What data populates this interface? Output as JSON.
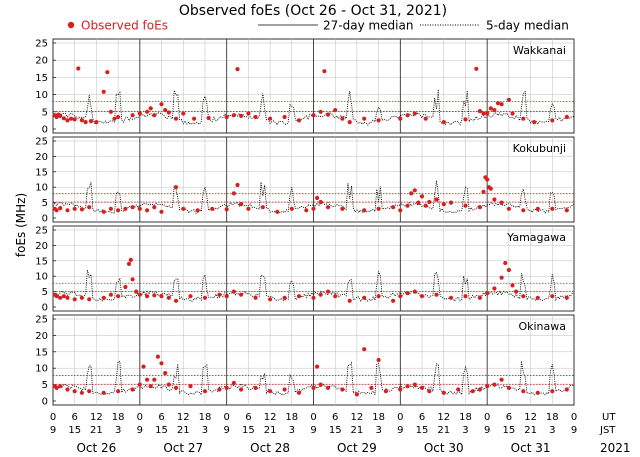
{
  "chart_data": {
    "type": "scatter",
    "title": "Observed foEs (Oct 26 - Oct 31, 2021)",
    "ylabel": "foEs (MHz)",
    "legend": {
      "observed": "Observed foEs",
      "median27": "27-day median",
      "median5": "5-day median"
    },
    "colors": {
      "observed": "#d62020",
      "median27": "#d62020",
      "median5": "#000000",
      "grid": "#bdbdbd"
    },
    "x_range_hours": [
      0,
      144
    ],
    "ylim": [
      0,
      25
    ],
    "yticks": [
      0,
      5,
      10,
      15,
      20,
      25
    ],
    "ut_tick_labels": [
      "0",
      "6",
      "12",
      "18",
      "0",
      "6",
      "12",
      "18",
      "0",
      "6",
      "12",
      "18",
      "0",
      "6",
      "12",
      "18",
      "0",
      "6",
      "12",
      "18",
      "0",
      "6",
      "12",
      "18",
      "0"
    ],
    "jst_tick_labels": [
      "9",
      "15",
      "21",
      "3",
      "9",
      "15",
      "21",
      "3",
      "9",
      "15",
      "21",
      "3",
      "9",
      "15",
      "21",
      "3",
      "9",
      "15",
      "21",
      "3",
      "9",
      "15",
      "21",
      "3",
      "9"
    ],
    "ut_label": "UT",
    "jst_label": "JST",
    "year": "2021",
    "days": [
      "Oct 26",
      "Oct 27",
      "Oct 28",
      "Oct 29",
      "Oct 30",
      "Oct 31"
    ],
    "panels": [
      {
        "station": "Wakkanai",
        "median27_upper": 8.0,
        "median27_lower": 5.1,
        "base": 3.0,
        "amp": 1.2,
        "noise": 0.7,
        "observed": [
          [
            0.5,
            4.0
          ],
          [
            1.0,
            3.5
          ],
          [
            1.5,
            4.2
          ],
          [
            2.0,
            3.8
          ],
          [
            3.0,
            3.1
          ],
          [
            4.0,
            2.5
          ],
          [
            5.0,
            3.0
          ],
          [
            6.0,
            2.8
          ],
          [
            7.0,
            17.6
          ],
          [
            8.0,
            2.6
          ],
          [
            9.0,
            2.0
          ],
          [
            10.5,
            2.3
          ],
          [
            12.0,
            2.0
          ],
          [
            14.0,
            10.8
          ],
          [
            15.0,
            16.5
          ],
          [
            16.0,
            5.0
          ],
          [
            17.0,
            3.0
          ],
          [
            18.0,
            3.5
          ],
          [
            22.0,
            4.0
          ],
          [
            24.0,
            4.5
          ],
          [
            26.0,
            5.0
          ],
          [
            27.0,
            6.0
          ],
          [
            28.0,
            4.0
          ],
          [
            30.0,
            7.2
          ],
          [
            31.0,
            5.5
          ],
          [
            32.0,
            4.8
          ],
          [
            34.0,
            3.0
          ],
          [
            36.0,
            4.5
          ],
          [
            39.0,
            3.0
          ],
          [
            43.0,
            3.2
          ],
          [
            48.0,
            3.5
          ],
          [
            50.0,
            4.0
          ],
          [
            51.0,
            17.4
          ],
          [
            52.0,
            3.8
          ],
          [
            54.0,
            4.5
          ],
          [
            56.0,
            3.5
          ],
          [
            60.0,
            3.0
          ],
          [
            64.0,
            3.5
          ],
          [
            68.0,
            2.5
          ],
          [
            72.0,
            4.0
          ],
          [
            74.0,
            5.0
          ],
          [
            75.0,
            16.8
          ],
          [
            76.0,
            4.2
          ],
          [
            78.0,
            5.5
          ],
          [
            80.0,
            3.0
          ],
          [
            82.0,
            2.0
          ],
          [
            86.0,
            3.0
          ],
          [
            90.0,
            2.5
          ],
          [
            96.0,
            3.0
          ],
          [
            98.0,
            4.0
          ],
          [
            100.0,
            4.5
          ],
          [
            103.0,
            3.0
          ],
          [
            108.0,
            2.0
          ],
          [
            114.0,
            2.8
          ],
          [
            117.0,
            17.5
          ],
          [
            118.0,
            5.2
          ],
          [
            119.0,
            4.5
          ],
          [
            120.0,
            4.5
          ],
          [
            121.0,
            6.0
          ],
          [
            122.0,
            5.5
          ],
          [
            123.0,
            7.5
          ],
          [
            124.0,
            7.2
          ],
          [
            126.0,
            8.5
          ],
          [
            127.0,
            4.5
          ],
          [
            130.0,
            3.0
          ],
          [
            133.0,
            2.0
          ],
          [
            138.0,
            2.5
          ],
          [
            142.0,
            3.5
          ]
        ]
      },
      {
        "station": "Kokubunji",
        "median27_upper": 7.9,
        "median27_lower": 5.2,
        "base": 3.3,
        "amp": 1.2,
        "noise": 0.6,
        "observed": [
          [
            0.5,
            3.0
          ],
          [
            1.0,
            2.5
          ],
          [
            2.0,
            3.2
          ],
          [
            4.0,
            2.5
          ],
          [
            6.0,
            3.0
          ],
          [
            8.0,
            2.8
          ],
          [
            10.0,
            3.5
          ],
          [
            14.0,
            2.0
          ],
          [
            16.0,
            3.0
          ],
          [
            18.0,
            2.5
          ],
          [
            20.0,
            3.0
          ],
          [
            22.0,
            3.5
          ],
          [
            24.0,
            3.0
          ],
          [
            26.0,
            2.5
          ],
          [
            28.0,
            3.5
          ],
          [
            30.0,
            2.0
          ],
          [
            34.0,
            10.0
          ],
          [
            36.0,
            3.0
          ],
          [
            40.0,
            2.5
          ],
          [
            44.0,
            3.0
          ],
          [
            48.0,
            2.8
          ],
          [
            50.0,
            8.0
          ],
          [
            51.0,
            10.7
          ],
          [
            52.0,
            4.5
          ],
          [
            54.0,
            3.0
          ],
          [
            58.0,
            3.5
          ],
          [
            62.0,
            2.0
          ],
          [
            66.0,
            3.0
          ],
          [
            70.0,
            2.5
          ],
          [
            72.0,
            3.0
          ],
          [
            73.0,
            6.5
          ],
          [
            74.0,
            5.2
          ],
          [
            76.0,
            3.5
          ],
          [
            80.0,
            3.0
          ],
          [
            86.0,
            2.5
          ],
          [
            90.0,
            3.0
          ],
          [
            94.0,
            3.5
          ],
          [
            96.0,
            2.5
          ],
          [
            98.0,
            4.0
          ],
          [
            99.0,
            8.0
          ],
          [
            100.0,
            9.0
          ],
          [
            101.0,
            5.0
          ],
          [
            102.0,
            7.0
          ],
          [
            103.0,
            4.0
          ],
          [
            104.0,
            5.2
          ],
          [
            106.0,
            6.0
          ],
          [
            108.0,
            4.5
          ],
          [
            110.0,
            5.0
          ],
          [
            114.0,
            4.0
          ],
          [
            118.0,
            3.5
          ],
          [
            119.0,
            8.5
          ],
          [
            119.5,
            13.2
          ],
          [
            120.0,
            12.5
          ],
          [
            120.5,
            10.0
          ],
          [
            121.0,
            9.5
          ],
          [
            122.0,
            6.0
          ],
          [
            124.0,
            5.0
          ],
          [
            126.0,
            3.0
          ],
          [
            130.0,
            2.5
          ],
          [
            134.0,
            3.0
          ],
          [
            138.0,
            3.0
          ],
          [
            142.0,
            2.5
          ]
        ]
      },
      {
        "station": "Yamagawa",
        "median27_upper": 7.7,
        "median27_lower": 5.0,
        "base": 3.5,
        "amp": 1.0,
        "noise": 0.7,
        "observed": [
          [
            0.5,
            4.0
          ],
          [
            1.0,
            3.5
          ],
          [
            2.0,
            3.0
          ],
          [
            3.0,
            3.5
          ],
          [
            4.0,
            3.0
          ],
          [
            6.0,
            2.5
          ],
          [
            8.0,
            3.0
          ],
          [
            10.0,
            2.5
          ],
          [
            14.0,
            3.0
          ],
          [
            16.0,
            4.0
          ],
          [
            18.0,
            3.5
          ],
          [
            20.0,
            6.5
          ],
          [
            21.0,
            14.0
          ],
          [
            21.5,
            15.3
          ],
          [
            22.0,
            9.0
          ],
          [
            23.0,
            5.0
          ],
          [
            24.0,
            4.0
          ],
          [
            26.0,
            3.5
          ],
          [
            28.0,
            3.8
          ],
          [
            30.0,
            3.5
          ],
          [
            32.0,
            3.0
          ],
          [
            34.0,
            2.0
          ],
          [
            38.0,
            3.5
          ],
          [
            42.0,
            3.0
          ],
          [
            46.0,
            4.0
          ],
          [
            48.0,
            3.5
          ],
          [
            50.0,
            5.0
          ],
          [
            52.0,
            4.0
          ],
          [
            56.0,
            3.0
          ],
          [
            60.0,
            2.5
          ],
          [
            64.0,
            3.0
          ],
          [
            68.0,
            3.5
          ],
          [
            72.0,
            3.0
          ],
          [
            74.0,
            4.0
          ],
          [
            76.0,
            5.0
          ],
          [
            78.0,
            3.5
          ],
          [
            82.0,
            2.0
          ],
          [
            86.0,
            3.0
          ],
          [
            90.0,
            3.5
          ],
          [
            94.0,
            2.0
          ],
          [
            96.0,
            3.5
          ],
          [
            98.0,
            4.5
          ],
          [
            100.0,
            5.0
          ],
          [
            102.0,
            3.5
          ],
          [
            106.0,
            4.0
          ],
          [
            110.0,
            3.0
          ],
          [
            114.0,
            3.5
          ],
          [
            118.0,
            3.0
          ],
          [
            120.0,
            4.5
          ],
          [
            122.0,
            6.0
          ],
          [
            124.0,
            9.5
          ],
          [
            125.0,
            14.3
          ],
          [
            126.0,
            12.0
          ],
          [
            127.0,
            7.0
          ],
          [
            128.0,
            5.0
          ],
          [
            130.0,
            3.5
          ],
          [
            134.0,
            3.0
          ],
          [
            138.0,
            3.5
          ],
          [
            142.0,
            3.0
          ]
        ]
      },
      {
        "station": "Okinawa",
        "median27_upper": 7.8,
        "median27_lower": 5.1,
        "base": 3.5,
        "amp": 1.1,
        "noise": 0.7,
        "observed": [
          [
            0.5,
            4.5
          ],
          [
            1.0,
            4.0
          ],
          [
            2.0,
            4.5
          ],
          [
            4.0,
            3.5
          ],
          [
            6.0,
            3.0
          ],
          [
            8.0,
            2.5
          ],
          [
            10.0,
            3.0
          ],
          [
            14.0,
            2.5
          ],
          [
            18.0,
            3.0
          ],
          [
            22.0,
            3.5
          ],
          [
            24.0,
            5.0
          ],
          [
            25.0,
            10.5
          ],
          [
            26.0,
            6.5
          ],
          [
            27.0,
            4.5
          ],
          [
            28.0,
            6.5
          ],
          [
            29.0,
            13.5
          ],
          [
            30.0,
            11.5
          ],
          [
            31.0,
            8.5
          ],
          [
            32.0,
            5.0
          ],
          [
            34.0,
            4.0
          ],
          [
            38.0,
            4.5
          ],
          [
            42.0,
            3.0
          ],
          [
            46.0,
            3.5
          ],
          [
            48.0,
            4.0
          ],
          [
            50.0,
            5.5
          ],
          [
            52.0,
            3.5
          ],
          [
            56.0,
            4.0
          ],
          [
            60.0,
            3.0
          ],
          [
            64.0,
            3.5
          ],
          [
            68.0,
            2.5
          ],
          [
            72.0,
            4.0
          ],
          [
            73.0,
            10.5
          ],
          [
            74.0,
            5.0
          ],
          [
            76.0,
            4.0
          ],
          [
            80.0,
            3.5
          ],
          [
            84.0,
            2.0
          ],
          [
            86.0,
            15.8
          ],
          [
            88.0,
            4.0
          ],
          [
            90.0,
            12.5
          ],
          [
            92.0,
            3.0
          ],
          [
            96.0,
            3.5
          ],
          [
            98.0,
            4.5
          ],
          [
            100.0,
            5.0
          ],
          [
            102.0,
            4.0
          ],
          [
            104.0,
            3.0
          ],
          [
            108.0,
            2.5
          ],
          [
            112.0,
            3.5
          ],
          [
            116.0,
            3.0
          ],
          [
            118.0,
            3.5
          ],
          [
            120.0,
            4.5
          ],
          [
            122.0,
            5.0
          ],
          [
            124.0,
            6.5
          ],
          [
            126.0,
            4.0
          ],
          [
            130.0,
            3.0
          ],
          [
            134.0,
            2.5
          ],
          [
            138.0,
            3.0
          ],
          [
            142.0,
            3.5
          ]
        ]
      }
    ]
  }
}
